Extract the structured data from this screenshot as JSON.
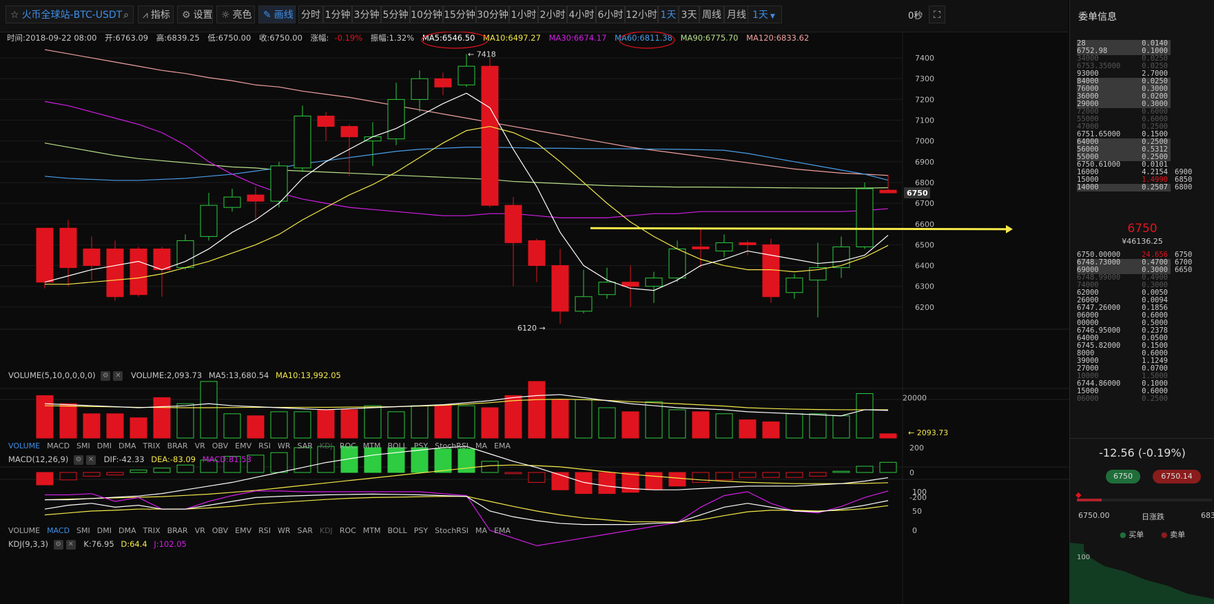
{
  "toolbar": {
    "market": "火币全球站-BTC-USDT",
    "indicator_btn": "指标",
    "settings_btn": "设置",
    "theme_btn": "亮色",
    "draw_btn": "画线",
    "timeframes": [
      "分时",
      "1分钟",
      "3分钟",
      "5分钟",
      "10分钟",
      "15分钟",
      "30分钟",
      "1小时",
      "2小时",
      "4小时",
      "6小时",
      "12小时",
      "1天",
      "3天",
      "周线",
      "月线"
    ],
    "active_timeframe": "1天",
    "dropdown": "1天",
    "timer": "0秒"
  },
  "status": {
    "time": "时间:2018-09-22 08:00",
    "open": "开:6763.09",
    "high": "高:6839.25",
    "low": "低:6750.00",
    "close": "收:6750.00",
    "change_label": "涨幅:",
    "change_value": "-0.19%",
    "amplitude": "振幅:1.32%",
    "ma5": "MA5:6546.50",
    "ma10": "MA10:6497.27",
    "ma30": "MA30:6674.17",
    "ma60": "MA60:6811.38",
    "ma90": "MA90:6775.70",
    "ma120": "MA120:6833.62"
  },
  "colors": {
    "up": "#2ecc40",
    "down": "#e0141e",
    "ma5": "#ffffff",
    "ma10": "#f5e94a",
    "ma30": "#d21ee6",
    "ma60": "#4a9ee8",
    "ma90": "#b8e08a",
    "ma120": "#f0a0a0",
    "accent": "#3d8fe8"
  },
  "chart_data": {
    "type": "candlestick",
    "price_axis": {
      "ticks": [
        6200,
        6300,
        6400,
        6500,
        6600,
        6700,
        6800,
        6900,
        7000,
        7100,
        7200,
        7300,
        7400
      ],
      "range": [
        6120,
        7460
      ]
    },
    "current_price_tag": "6750",
    "high_marker": "← 7418",
    "low_marker": "6120 →",
    "candles": [
      {
        "o": 6580,
        "c": 6320,
        "h": 6580,
        "l": 6290
      },
      {
        "o": 6580,
        "c": 6390,
        "h": 6620,
        "l": 6300
      },
      {
        "o": 6480,
        "c": 6400,
        "h": 6540,
        "l": 6330
      },
      {
        "o": 6480,
        "c": 6250,
        "h": 6520,
        "l": 6230
      },
      {
        "o": 6480,
        "c": 6260,
        "h": 6490,
        "l": 6250
      },
      {
        "o": 6480,
        "c": 6380,
        "h": 6490,
        "l": 6250
      },
      {
        "o": 6390,
        "c": 6520,
        "h": 6550,
        "l": 6380
      },
      {
        "o": 6540,
        "c": 6690,
        "h": 6750,
        "l": 6520
      },
      {
        "o": 6680,
        "c": 6730,
        "h": 6770,
        "l": 6660
      },
      {
        "o": 6740,
        "c": 6710,
        "h": 6780,
        "l": 6620
      },
      {
        "o": 6710,
        "c": 6880,
        "h": 6900,
        "l": 6680
      },
      {
        "o": 6870,
        "c": 7120,
        "h": 7170,
        "l": 6850
      },
      {
        "o": 7120,
        "c": 7070,
        "h": 7140,
        "l": 7000
      },
      {
        "o": 7070,
        "c": 7020,
        "h": 7080,
        "l": 6830
      },
      {
        "o": 7000,
        "c": 7020,
        "h": 7090,
        "l": 6880
      },
      {
        "o": 7010,
        "c": 7200,
        "h": 7280,
        "l": 6980
      },
      {
        "o": 7200,
        "c": 7300,
        "h": 7340,
        "l": 7140
      },
      {
        "o": 7300,
        "c": 7260,
        "h": 7330,
        "l": 7220
      },
      {
        "o": 7270,
        "c": 7360,
        "h": 7418,
        "l": 7260
      },
      {
        "o": 7360,
        "c": 6690,
        "h": 7400,
        "l": 6680
      },
      {
        "o": 6690,
        "c": 6510,
        "h": 6730,
        "l": 6300
      },
      {
        "o": 6520,
        "c": 6400,
        "h": 6530,
        "l": 6320
      },
      {
        "o": 6400,
        "c": 6180,
        "h": 6480,
        "l": 6120
      },
      {
        "o": 6180,
        "c": 6250,
        "h": 6380,
        "l": 6170
      },
      {
        "o": 6260,
        "c": 6320,
        "h": 6390,
        "l": 6240
      },
      {
        "o": 6320,
        "c": 6300,
        "h": 6400,
        "l": 6200
      },
      {
        "o": 6300,
        "c": 6340,
        "h": 6370,
        "l": 6220
      },
      {
        "o": 6340,
        "c": 6480,
        "h": 6520,
        "l": 6320
      },
      {
        "o": 6490,
        "c": 6480,
        "h": 6580,
        "l": 6390
      },
      {
        "o": 6470,
        "c": 6510,
        "h": 6550,
        "l": 6440
      },
      {
        "o": 6510,
        "c": 6500,
        "h": 6520,
        "l": 6450
      },
      {
        "o": 6500,
        "c": 6250,
        "h": 6530,
        "l": 6220
      },
      {
        "o": 6270,
        "c": 6340,
        "h": 6360,
        "l": 6240
      },
      {
        "o": 6330,
        "c": 6390,
        "h": 6510,
        "l": 6150
      },
      {
        "o": 6390,
        "c": 6490,
        "h": 6540,
        "l": 6340
      },
      {
        "o": 6490,
        "c": 6770,
        "h": 6800,
        "l": 6480
      },
      {
        "o": 6763,
        "c": 6750,
        "h": 6839,
        "l": 6750
      }
    ],
    "ma5": [
      6320,
      6350,
      6380,
      6400,
      6420,
      6380,
      6420,
      6480,
      6560,
      6620,
      6700,
      6820,
      6900,
      6960,
      7020,
      7060,
      7120,
      7180,
      7230,
      7160,
      6960,
      6780,
      6560,
      6400,
      6330,
      6290,
      6280,
      6330,
      6400,
      6430,
      6470,
      6450,
      6430,
      6410,
      6420,
      6450,
      6546
    ],
    "ma10": [
      6310,
      6310,
      6320,
      6330,
      6340,
      6360,
      6390,
      6420,
      6460,
      6500,
      6550,
      6620,
      6680,
      6740,
      6790,
      6850,
      6920,
      6990,
      7050,
      7070,
      7040,
      6990,
      6900,
      6800,
      6700,
      6610,
      6540,
      6480,
      6430,
      6400,
      6380,
      6380,
      6370,
      6380,
      6400,
      6440,
      6497
    ],
    "ma30": [
      7190,
      7170,
      7140,
      7110,
      7080,
      7040,
      6980,
      6900,
      6840,
      6790,
      6750,
      6720,
      6700,
      6680,
      6670,
      6660,
      6650,
      6640,
      6640,
      6650,
      6650,
      6640,
      6630,
      6630,
      6630,
      6640,
      6650,
      6650,
      6660,
      6660,
      6660,
      6660,
      6660,
      6660,
      6660,
      6665,
      6674
    ],
    "ma60": [
      6830,
      6820,
      6815,
      6810,
      6810,
      6815,
      6820,
      6830,
      6840,
      6855,
      6870,
      6890,
      6905,
      6920,
      6935,
      6950,
      6960,
      6965,
      6970,
      6970,
      6968,
      6965,
      6965,
      6963,
      6963,
      6962,
      6961,
      6960,
      6958,
      6955,
      6940,
      6920,
      6900,
      6880,
      6860,
      6840,
      6811
    ],
    "ma90": [
      6990,
      6970,
      6950,
      6930,
      6915,
      6905,
      6895,
      6885,
      6875,
      6870,
      6860,
      6855,
      6850,
      6845,
      6840,
      6835,
      6830,
      6825,
      6820,
      6815,
      6805,
      6800,
      6795,
      6790,
      6785,
      6782,
      6780,
      6778,
      6778,
      6777,
      6776,
      6775,
      6774,
      6773,
      6772,
      6773,
      6775
    ],
    "ma120": [
      7440,
      7420,
      7400,
      7380,
      7360,
      7340,
      7325,
      7305,
      7290,
      7270,
      7260,
      7240,
      7225,
      7210,
      7190,
      7170,
      7150,
      7130,
      7110,
      7090,
      7070,
      7050,
      7030,
      7010,
      6990,
      6970,
      6955,
      6940,
      6925,
      6910,
      6895,
      6880,
      6865,
      6855,
      6845,
      6840,
      6834
    ],
    "volume": {
      "header": "VOLUME(5,10,0,0,0,0)",
      "value": "VOLUME:2,093.73",
      "ma5": "MA5:13,680.54",
      "ma10": "MA10:13,992.05",
      "tick": "20000",
      "last_tag": "← 2093.73",
      "bars": [
        21000,
        17000,
        12000,
        12000,
        10000,
        20000,
        17000,
        28000,
        12000,
        11000,
        13000,
        13000,
        14000,
        14000,
        16000,
        13000,
        16000,
        16000,
        16000,
        15000,
        21000,
        28000,
        19000,
        19000,
        15000,
        13000,
        18000,
        14000,
        13000,
        12000,
        9000,
        8000,
        12000,
        12000,
        11000,
        22000,
        2094
      ],
      "ma5_line": [
        17000,
        16500,
        16000,
        15500,
        15000,
        15500,
        16000,
        17000,
        16000,
        15500,
        15000,
        14500,
        14000,
        14500,
        15000,
        15500,
        16000,
        16500,
        17500,
        18500,
        20000,
        21000,
        21500,
        20000,
        18500,
        17000,
        16000,
        15000,
        14500,
        14000,
        13000,
        12500,
        12000,
        11500,
        11000,
        14000,
        13680
      ],
      "ma10_line": [
        16000,
        15800,
        15600,
        15400,
        15200,
        15100,
        15000,
        15000,
        15100,
        15200,
        15200,
        15200,
        15200,
        15300,
        15400,
        15500,
        15800,
        16200,
        16800,
        17500,
        18500,
        19000,
        19200,
        19000,
        18600,
        18000,
        17500,
        17000,
        16400,
        15800,
        15000,
        14600,
        14300,
        14100,
        14000,
        14000,
        13992
      ]
    },
    "macd": {
      "header": "MACD(12,26,9)",
      "dif": "DIF:-42.33",
      "dea": "DEA:-83.09",
      "macd": "MACD:81.53",
      "ticks": [
        "200",
        "0",
        "-200"
      ],
      "hist": [
        -100,
        -60,
        -30,
        -20,
        20,
        35,
        60,
        100,
        130,
        140,
        160,
        200,
        210,
        210,
        200,
        200,
        200,
        190,
        190,
        90,
        -10,
        -80,
        -140,
        -170,
        -170,
        -160,
        -140,
        -110,
        -80,
        -60,
        -40,
        -40,
        -40,
        -30,
        10,
        50,
        82
      ],
      "dif_line": [
        -220,
        -220,
        -210,
        -200,
        -190,
        -170,
        -140,
        -110,
        -80,
        -40,
        0,
        40,
        80,
        110,
        140,
        160,
        180,
        200,
        210,
        150,
        90,
        40,
        -20,
        -80,
        -110,
        -130,
        -140,
        -140,
        -130,
        -120,
        -110,
        -110,
        -110,
        -100,
        -90,
        -70,
        -42
      ],
      "dea_line": [
        -220,
        -215,
        -210,
        -205,
        -200,
        -195,
        -185,
        -175,
        -160,
        -145,
        -125,
        -105,
        -85,
        -65,
        -45,
        -25,
        -5,
        15,
        35,
        55,
        60,
        55,
        45,
        25,
        5,
        -15,
        -30,
        -45,
        -60,
        -70,
        -80,
        -85,
        -90,
        -90,
        -90,
        -88,
        -83
      ]
    },
    "kdj": {
      "header": "KDJ(9,3,3)",
      "k": "K:76.95",
      "d": "D:64.4",
      "j": "J:102.05",
      "ticks": [
        "100",
        "50",
        "0"
      ],
      "k_line": [
        55,
        65,
        70,
        60,
        65,
        55,
        55,
        65,
        75,
        85,
        88,
        90,
        92,
        93,
        94,
        93,
        92,
        90,
        88,
        50,
        35,
        25,
        18,
        15,
        15,
        15,
        18,
        20,
        40,
        60,
        70,
        60,
        50,
        48,
        55,
        65,
        77
      ],
      "d_line": [
        40,
        45,
        50,
        52,
        55,
        55,
        55,
        58,
        62,
        68,
        72,
        76,
        80,
        83,
        85,
        86,
        87,
        88,
        88,
        75,
        62,
        50,
        40,
        32,
        27,
        22,
        22,
        21,
        27,
        38,
        48,
        52,
        52,
        50,
        52,
        56,
        64
      ],
      "j_line": [
        92,
        92,
        95,
        75,
        85,
        55,
        55,
        75,
        90,
        102,
        102,
        100,
        100,
        100,
        100,
        100,
        100,
        95,
        90,
        0,
        -20,
        -40,
        -30,
        -20,
        -10,
        0,
        10,
        20,
        60,
        90,
        100,
        70,
        50,
        45,
        62,
        85,
        102
      ]
    },
    "indicator_tabs": [
      "VOLUME",
      "MACD",
      "SMI",
      "DMI",
      "DMA",
      "TRIX",
      "BRAR",
      "VR",
      "OBV",
      "EMV",
      "RSI",
      "WR",
      "SAR",
      "KDJ",
      "ROC",
      "MTM",
      "BOLL",
      "PSY",
      "StochRSI",
      "MA",
      "EMA"
    ]
  },
  "orderbook": {
    "title": "委单信息",
    "asks": [
      {
        "p": "28",
        "q": "0.0140",
        "hl": true
      },
      {
        "p": "6752.98",
        "q": "0.1000",
        "hl": true
      },
      {
        "p": "34000",
        "q": "0.0250",
        "dim": true
      },
      {
        "p": "6753.35000",
        "q": "0.0250",
        "dim": true
      },
      {
        "p": "93000",
        "q": "2.7000"
      },
      {
        "p": "84000",
        "q": "0.0250",
        "hl": true
      },
      {
        "p": "76000",
        "q": "0.3000",
        "hl": true
      },
      {
        "p": "36000",
        "q": "0.0200",
        "hl": true
      },
      {
        "p": "29000",
        "q": "0.3000",
        "hl": true
      },
      {
        "p": "72000",
        "q": "0.6000",
        "dim": true
      },
      {
        "p": "55000",
        "q": "0.6000",
        "dim": true
      },
      {
        "p": "47000",
        "q": "0.2500",
        "dim": true
      },
      {
        "p": "6751.65000",
        "q": "0.1500"
      },
      {
        "p": "64000",
        "q": "0.2500",
        "hl": true
      },
      {
        "p": "56000",
        "q": "0.5312",
        "hl": true
      },
      {
        "p": "55000",
        "q": "0.2500",
        "hl": true
      },
      {
        "p": "6750.61000",
        "q": "0.0101"
      },
      {
        "p": "16000",
        "q": "4.2154",
        "s": "6900"
      },
      {
        "p": "15000",
        "q": "1.4990",
        "s": "6850"
      },
      {
        "p": "14000",
        "q": "0.2507",
        "s": "6800",
        "hl": true
      }
    ],
    "last_price": "6750",
    "cny_price": "¥46136.25",
    "bids": [
      {
        "p": "6750.00000",
        "q": "24.656",
        "s": "6750"
      },
      {
        "p": "6748.73000",
        "q": "0.4700",
        "s": "6700",
        "hl": true
      },
      {
        "p": "69000",
        "q": "0.3000",
        "s": "6650",
        "hl": true
      },
      {
        "p": "6748.99000",
        "q": "0.4900",
        "dim": true
      },
      {
        "p": "74000",
        "q": "0.3000",
        "dim": true
      },
      {
        "p": "62000",
        "q": "0.0050"
      },
      {
        "p": "26000",
        "q": "0.0094"
      },
      {
        "p": "6747.26000",
        "q": "0.1856"
      },
      {
        "p": "06000",
        "q": "0.6000"
      },
      {
        "p": "00000",
        "q": "0.5000"
      },
      {
        "p": "6746.95000",
        "q": "0.2378"
      },
      {
        "p": "64000",
        "q": "0.0500"
      },
      {
        "p": "6745.82000",
        "q": "0.1500"
      },
      {
        "p": "8000",
        "q": "0.6000"
      },
      {
        "p": "39000",
        "q": "1.1249"
      },
      {
        "p": "27000",
        "q": "0.0700"
      },
      {
        "p": "10000",
        "q": "1.5000",
        "dim": true
      },
      {
        "p": "6744.86000",
        "q": "0.1000"
      },
      {
        "p": "15000",
        "q": "0.6000"
      },
      {
        "p": "06000",
        "q": "0.2500",
        "dim": true
      }
    ],
    "change": "-12.56 (-0.19%)",
    "buy_price": "6750",
    "sell_price": "6750.14",
    "low_label": "6750.00",
    "range_label": "日涨跌",
    "high_label": "683",
    "legend_buy": "买单",
    "legend_sell": "卖单",
    "depth_tick": "100"
  }
}
